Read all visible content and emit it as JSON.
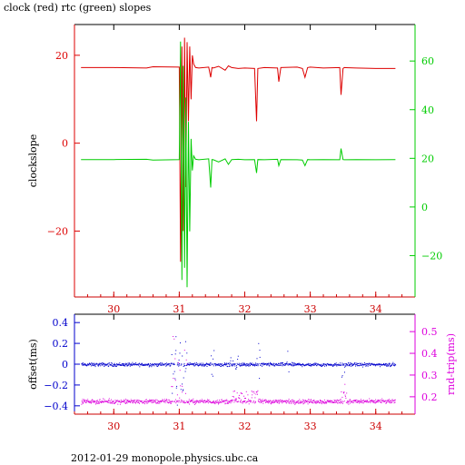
{
  "title": "clock (red) rtc (green) slopes",
  "footer": "2012-01-29 monopole.physics.ubc.ca",
  "colors": {
    "clock": "#dd0000",
    "rtc": "#00cc00",
    "offset": "#0000cc",
    "rndtrip": "#dd00dd",
    "x_axis": "#cc0000"
  },
  "chart_data": [
    {
      "type": "line",
      "xlim": [
        29.4,
        34.6
      ],
      "ylabel": "clockslope",
      "ylim": [
        -35,
        27
      ],
      "y2lim": [
        -37,
        75
      ],
      "x_ticks": [
        30,
        31,
        32,
        33,
        34
      ],
      "y_ticks": [
        -20,
        0,
        20
      ],
      "y2_ticks": [
        -20,
        0,
        20,
        40,
        60
      ],
      "grid": false,
      "series": [
        {
          "axis": "left",
          "color_key": "clock",
          "x": [
            29.5,
            30.0,
            30.5,
            30.6,
            31.0,
            31.02,
            31.04,
            31.06,
            31.08,
            31.1,
            31.12,
            31.14,
            31.16,
            31.18,
            31.2,
            31.22,
            31.25,
            31.3,
            31.45,
            31.48,
            31.5,
            31.52,
            31.6,
            31.7,
            31.75,
            31.8,
            31.9,
            32.0,
            32.15,
            32.18,
            32.2,
            32.3,
            32.5,
            32.52,
            32.55,
            32.8,
            32.88,
            32.92,
            32.96,
            33.0,
            33.2,
            33.45,
            33.47,
            33.5,
            33.52,
            33.7,
            34.0,
            34.3
          ],
          "values": [
            17.2,
            17.2,
            17.1,
            17.4,
            17.3,
            -27.0,
            22.0,
            -20.0,
            24.0,
            -10.0,
            23.0,
            5.0,
            22.0,
            10.0,
            20.0,
            18.0,
            17.2,
            17.1,
            17.3,
            15.0,
            17.2,
            17.1,
            17.5,
            16.6,
            17.6,
            17.2,
            17.0,
            17.1,
            17.0,
            5.0,
            17.0,
            17.2,
            17.1,
            14.0,
            17.2,
            17.3,
            17.0,
            15.0,
            17.2,
            17.3,
            17.1,
            17.2,
            11.0,
            17.0,
            17.2,
            17.1,
            17.0,
            17.0
          ]
        },
        {
          "axis": "right",
          "color_key": "rtc",
          "x": [
            29.5,
            30.0,
            30.5,
            30.6,
            31.0,
            31.02,
            31.04,
            31.06,
            31.08,
            31.1,
            31.12,
            31.14,
            31.16,
            31.18,
            31.2,
            31.22,
            31.25,
            31.3,
            31.45,
            31.48,
            31.5,
            31.52,
            31.6,
            31.7,
            31.75,
            31.8,
            31.9,
            32.0,
            32.15,
            32.18,
            32.2,
            32.3,
            32.5,
            32.52,
            32.55,
            32.8,
            32.88,
            32.92,
            32.96,
            33.0,
            33.2,
            33.45,
            33.47,
            33.5,
            33.52,
            33.7,
            34.0,
            34.3
          ],
          "values": [
            19.5,
            19.5,
            19.6,
            19.3,
            19.5,
            68.0,
            -30.0,
            58.0,
            -25.0,
            45.0,
            -33.0,
            35.0,
            -10.0,
            28.0,
            15.0,
            21.0,
            19.6,
            19.4,
            19.8,
            8.0,
            19.5,
            19.4,
            18.5,
            19.8,
            17.5,
            19.5,
            19.6,
            19.4,
            19.5,
            14.0,
            19.5,
            19.4,
            19.6,
            17.0,
            19.5,
            19.4,
            19.3,
            17.0,
            19.5,
            19.4,
            19.5,
            19.4,
            24.0,
            19.5,
            19.4,
            19.5,
            19.4,
            19.5
          ]
        }
      ]
    },
    {
      "type": "scatter",
      "xlim": [
        29.4,
        34.6
      ],
      "ylabel": "offset(ms)",
      "y2label": "rnd-trip(ms)",
      "ylim": [
        -0.48,
        0.48
      ],
      "y2lim": [
        0.12,
        0.58
      ],
      "x_ticks": [
        30,
        31,
        32,
        33,
        34
      ],
      "y_ticks": [
        -0.4,
        -0.2,
        0,
        0.2,
        0.4
      ],
      "y_tick_labels": [
        "−0.4",
        "−0.2",
        "0",
        "0.2",
        "0.4"
      ],
      "y2_ticks": [
        0.2,
        0.3,
        0.4,
        0.5
      ],
      "grid": false,
      "series": [
        {
          "axis": "left",
          "color_key": "offset",
          "x_range": [
            29.5,
            34.3
          ],
          "baseline": 0.0,
          "spread": 0.025,
          "bursts": [
            {
              "x": 31.0,
              "width": 0.25,
              "amp": 0.45
            },
            {
              "x": 31.5,
              "width": 0.05,
              "amp": 0.45
            },
            {
              "x": 31.8,
              "width": 0.2,
              "amp": 0.12
            },
            {
              "x": 32.2,
              "width": 0.05,
              "amp": 0.4
            },
            {
              "x": 32.65,
              "width": 0.05,
              "amp": 0.4
            },
            {
              "x": 33.5,
              "width": 0.05,
              "amp": 0.3
            }
          ]
        },
        {
          "axis": "right",
          "color_key": "rndtrip",
          "x_range": [
            29.5,
            34.3
          ],
          "baseline": 0.18,
          "spread": 0.015,
          "bursts": [
            {
              "x": 31.0,
              "width": 0.25,
              "amp": 0.3
            },
            {
              "x": 32.0,
              "width": 0.4,
              "amp": 0.05
            },
            {
              "x": 33.5,
              "width": 0.1,
              "amp": 0.08
            }
          ]
        }
      ]
    }
  ]
}
